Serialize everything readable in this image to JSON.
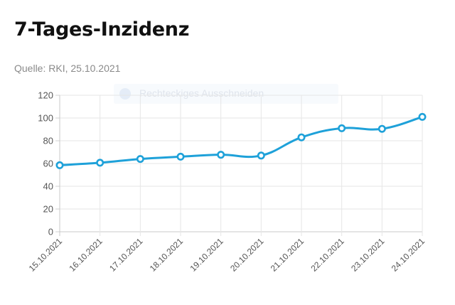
{
  "header": {
    "title": "7-Tages-Inzidenz",
    "source": "Quelle: RKI, 25.10.2021"
  },
  "overlay": {
    "label": "Rechteckiges Ausschneiden"
  },
  "chart_data": {
    "type": "line",
    "categories": [
      "15.10.2021",
      "16.10.2021",
      "17.10.2021",
      "18.10.2021",
      "19.10.2021",
      "20.10.2021",
      "21.10.2021",
      "22.10.2021",
      "23.10.2021",
      "24.10.2021"
    ],
    "values": [
      58.5,
      60.7,
      64.0,
      66.0,
      67.7,
      67.0,
      83.0,
      91.0,
      90.5,
      101.0
    ],
    "ylim": [
      0,
      120
    ],
    "yticks": [
      0,
      20,
      40,
      60,
      80,
      100,
      120
    ],
    "grid": true,
    "color": "#1ea1d9",
    "smooth": true
  }
}
